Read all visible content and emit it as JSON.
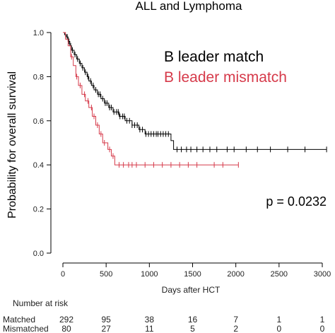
{
  "chart_data": {
    "type": "line",
    "title": "ALL and Lymphoma",
    "xlabel": "Days after HCT",
    "ylabel": "Probability for overall survival",
    "xlim": [
      0,
      3100
    ],
    "ylim": [
      0,
      1
    ],
    "x_ticks": [
      0,
      500,
      1000,
      1500,
      2000,
      2500,
      3000
    ],
    "y_ticks": [
      "0.0",
      "0.2",
      "0.4",
      "0.6",
      "0.8",
      "1.0"
    ],
    "p_value_label": "p = 0.0232",
    "legend_position": "top-right",
    "series": [
      {
        "name": "B leader match",
        "color": "#000000",
        "steps": [
          [
            0,
            1.0
          ],
          [
            20,
            0.99
          ],
          [
            40,
            0.98
          ],
          [
            60,
            0.96
          ],
          [
            80,
            0.94
          ],
          [
            100,
            0.92
          ],
          [
            130,
            0.9
          ],
          [
            160,
            0.88
          ],
          [
            190,
            0.86
          ],
          [
            220,
            0.84
          ],
          [
            250,
            0.82
          ],
          [
            280,
            0.8
          ],
          [
            300,
            0.78
          ],
          [
            330,
            0.76
          ],
          [
            360,
            0.74
          ],
          [
            400,
            0.72
          ],
          [
            440,
            0.7
          ],
          [
            480,
            0.68
          ],
          [
            530,
            0.66
          ],
          [
            580,
            0.64
          ],
          [
            650,
            0.62
          ],
          [
            720,
            0.6
          ],
          [
            800,
            0.58
          ],
          [
            880,
            0.56
          ],
          [
            950,
            0.54
          ],
          [
            1250,
            0.51
          ],
          [
            1280,
            0.47
          ],
          [
            3050,
            0.47
          ]
        ],
        "censor_x": [
          50,
          70,
          90,
          110,
          140,
          170,
          200,
          230,
          260,
          290,
          320,
          350,
          380,
          410,
          430,
          460,
          490,
          510,
          540,
          560,
          590,
          620,
          640,
          660,
          690,
          710,
          740,
          770,
          800,
          830,
          860,
          890,
          920,
          960,
          990,
          1020,
          1050,
          1080,
          1100,
          1130,
          1160,
          1190,
          1220,
          1320,
          1370,
          1430,
          1480,
          1550,
          1620,
          1700,
          1780,
          1900,
          1980,
          2120,
          2250,
          2400,
          2600,
          2800,
          3050
        ]
      },
      {
        "name": "B leader mismatch",
        "color": "#d63a4a",
        "steps": [
          [
            0,
            1.0
          ],
          [
            30,
            0.97
          ],
          [
            60,
            0.94
          ],
          [
            90,
            0.89
          ],
          [
            120,
            0.85
          ],
          [
            150,
            0.8
          ],
          [
            180,
            0.76
          ],
          [
            220,
            0.72
          ],
          [
            260,
            0.69
          ],
          [
            300,
            0.66
          ],
          [
            340,
            0.62
          ],
          [
            380,
            0.58
          ],
          [
            420,
            0.54
          ],
          [
            460,
            0.5
          ],
          [
            520,
            0.47
          ],
          [
            560,
            0.44
          ],
          [
            600,
            0.4
          ],
          [
            2030,
            0.4
          ]
        ],
        "censor_x": [
          100,
          160,
          200,
          250,
          290,
          330,
          360,
          400,
          440,
          480,
          540,
          580,
          650,
          700,
          760,
          800,
          850,
          950,
          1050,
          1150,
          1250,
          1350,
          1450,
          1550,
          1750,
          1850,
          2030
        ]
      }
    ],
    "risk_table": {
      "header": "Number at risk",
      "rows": [
        {
          "label": "Matched",
          "values": [
            "292",
            "95",
            "38",
            "16",
            "7",
            "1",
            "1"
          ]
        },
        {
          "label": "Mismatched",
          "values": [
            "80",
            "27",
            "11",
            "5",
            "2",
            "0",
            "0"
          ]
        }
      ]
    }
  }
}
